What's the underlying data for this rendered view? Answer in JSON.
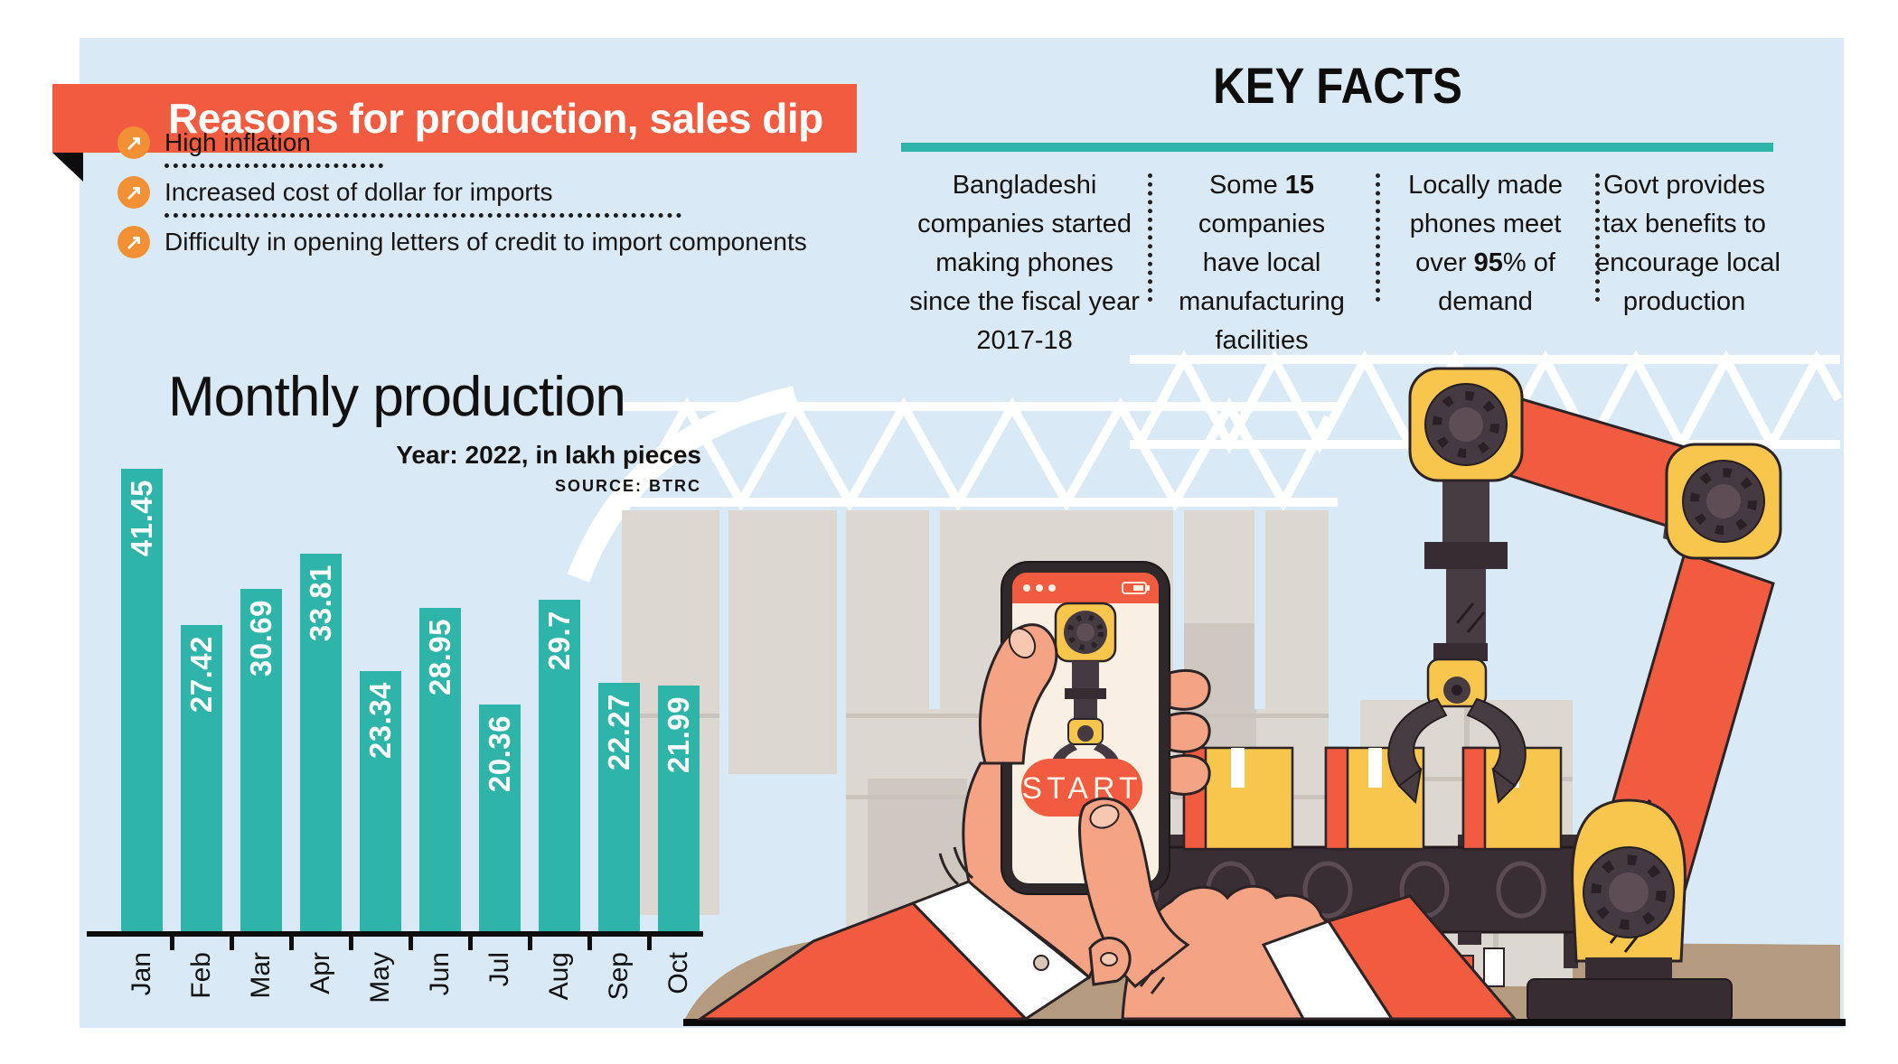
{
  "banner": {
    "title": "Reasons for production, sales dip",
    "bg_color": "#f15b40"
  },
  "reasons": {
    "bullet_icon": "arrow-up-right-icon",
    "items": [
      "High inflation",
      "Increased cost of dollar for imports",
      "Difficulty in opening letters of credit to import components"
    ]
  },
  "chart_data": {
    "type": "bar",
    "title": "Monthly production",
    "subtitle": "Year: 2022, in lakh pieces",
    "source": "SOURCE: BTRC",
    "categories": [
      "Jan",
      "Feb",
      "Mar",
      "Apr",
      "May",
      "Jun",
      "Jul",
      "Aug",
      "Sep",
      "Oct"
    ],
    "values": [
      41.45,
      27.42,
      30.69,
      33.81,
      23.34,
      28.95,
      20.36,
      29.7,
      22.27,
      21.99
    ],
    "ylim": [
      0,
      41.45
    ],
    "grid": false,
    "bar_color": "#2fb4aa",
    "value_label_color": "#ffffff",
    "value_labels_rotated": true,
    "legend": "none"
  },
  "key_facts": {
    "title": "KEY FACTS",
    "underline_color": "#2fb4aa",
    "facts": [
      {
        "lines": [
          [
            {
              "t": "Bangladeshi"
            }
          ],
          [
            {
              "t": "companies started"
            }
          ],
          [
            {
              "t": "making phones"
            }
          ],
          [
            {
              "t": "since the fiscal year"
            }
          ],
          [
            {
              "t": "2017-18"
            }
          ]
        ]
      },
      {
        "lines": [
          [
            {
              "t": "Some "
            },
            {
              "t": "15",
              "b": true
            }
          ],
          [
            {
              "t": "companies"
            }
          ],
          [
            {
              "t": "have local"
            }
          ],
          [
            {
              "t": "manufacturing"
            }
          ],
          [
            {
              "t": "facilities"
            }
          ]
        ]
      },
      {
        "lines": [
          [
            {
              "t": "Locally made"
            }
          ],
          [
            {
              "t": "phones meet"
            }
          ],
          [
            {
              "t": "over "
            },
            {
              "t": "95",
              "b": true
            },
            {
              "t": "% of"
            }
          ],
          [
            {
              "t": "demand"
            }
          ]
        ]
      },
      {
        "lines": [
          [
            {
              "t": "Govt provides"
            }
          ],
          [
            {
              "t": "tax benefits to"
            }
          ],
          [
            {
              "t": "encourage local"
            }
          ],
          [
            {
              "t": "production"
            }
          ]
        ]
      }
    ]
  },
  "illustration": {
    "phone_button_label": "START"
  },
  "colors": {
    "panel_bg": "#d9eaf6",
    "accent_red": "#f15b40",
    "teal": "#2fb4aa",
    "bullet_orange": "#f29036",
    "machine_yellow": "#f8c64d",
    "machine_dark": "#453a41",
    "skin": "#f4a385",
    "table_tan": "#b49b80"
  }
}
